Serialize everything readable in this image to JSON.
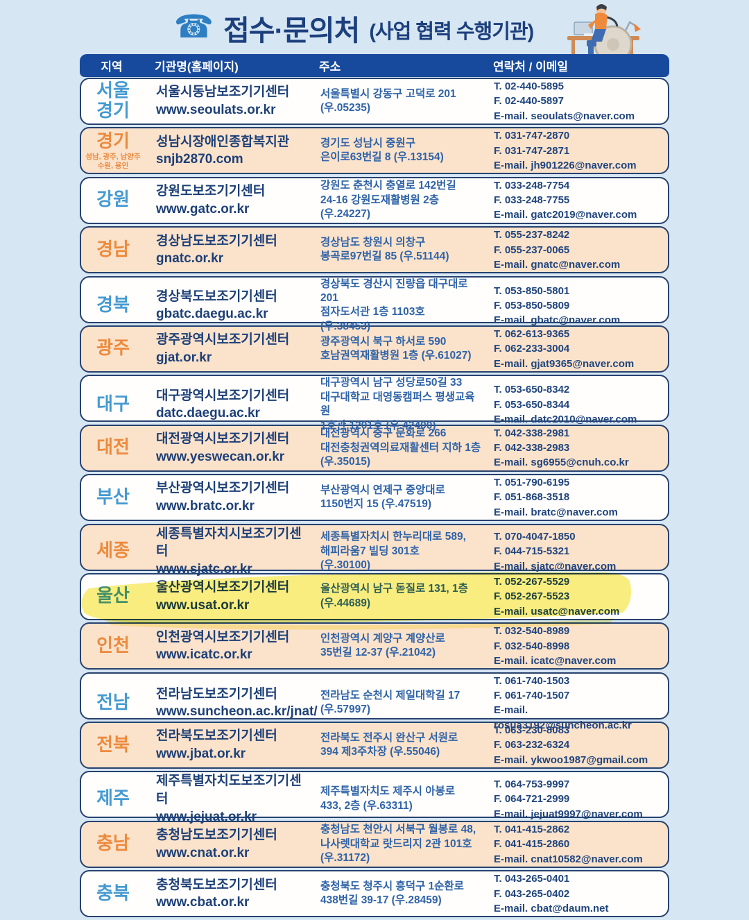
{
  "header": {
    "phone_icon": "☎",
    "title": "접수·문의처",
    "subtitle": "(사업 협력 수행기관)",
    "illustration": "person-in-wheelchair-working-at-desk"
  },
  "colors": {
    "background": "#d6e6f3",
    "header_navy": "#174a9c",
    "row_peach": "#fbe2cb",
    "region_blue": "#459ad2",
    "region_orange": "#ec8a3d",
    "text_navy": "#1d4078",
    "highlight_yellow": "#f3e32a"
  },
  "table": {
    "columns": [
      "지역",
      "기관명(홈페이지)",
      "주소",
      "연락처 / 이메일"
    ],
    "rows": [
      {
        "region_lines": [
          "서울",
          "경기"
        ],
        "region_note_lines": [],
        "org_name": "서울시동남보조기기센터",
        "org_url": "www.seoulats.or.kr",
        "address_lines": [
          "서울특별시 강동구 고덕로 201",
          "(우.05235)"
        ],
        "contact_lines": [
          "T. 02-440-5895",
          "F. 02-440-5897",
          "E-mail. seoulats@naver.com"
        ]
      },
      {
        "region_lines": [
          "경기"
        ],
        "region_note_lines": [
          "성남, 광주, 남양주",
          "수원, 용인"
        ],
        "org_name": "성남시장애인종합복지관",
        "org_url": "snjb2870.com",
        "address_lines": [
          "경기도 성남시 중원구",
          "은이로63번길 8 (우.13154)"
        ],
        "contact_lines": [
          "T. 031-747-2870",
          "F. 031-747-2871",
          "E-mail. jh901226@naver.com"
        ]
      },
      {
        "region_lines": [
          "강원"
        ],
        "region_note_lines": [],
        "org_name": "강원도보조기기센터",
        "org_url": "www.gatc.or.kr",
        "address_lines": [
          "강원도 춘천시 충열로 142번길",
          "24-16 강원도재활병원 2층",
          "(우.24227)"
        ],
        "contact_lines": [
          "T. 033-248-7754",
          "F. 033-248-7755",
          "E-mail. gatc2019@naver.com"
        ]
      },
      {
        "region_lines": [
          "경남"
        ],
        "region_note_lines": [],
        "org_name": "경상남도보조기기센터",
        "org_url": "gnatc.or.kr",
        "address_lines": [
          "경상남도 창원시 의창구",
          "봉곡로97번길 85 (우.51144)"
        ],
        "contact_lines": [
          "T. 055-237-8242",
          "F. 055-237-0065",
          "E-mail. gnatc@naver.com"
        ]
      },
      {
        "region_lines": [
          "경북"
        ],
        "region_note_lines": [],
        "org_name": "경상북도보조기기센터",
        "org_url": "gbatc.daegu.ac.kr",
        "address_lines": [
          "경상북도 경산시 진량읍 대구대로 201",
          "점자도서관 1층 1103호",
          "(우.38453)"
        ],
        "contact_lines": [
          "T. 053-850-5801",
          "F. 053-850-5809",
          "E-mail. gbatc@naver.com"
        ]
      },
      {
        "region_lines": [
          "광주"
        ],
        "region_note_lines": [],
        "org_name": "광주광역시보조기기센터",
        "org_url": "gjat.or.kr",
        "address_lines": [
          "광주광역시 북구 하서로 590",
          "호남권역재활병원 1층 (우.61027)"
        ],
        "contact_lines": [
          "T. 062-613-9365",
          "F. 062-233-3004",
          "E-mail. gjat9365@naver.com"
        ]
      },
      {
        "region_lines": [
          "대구"
        ],
        "region_note_lines": [],
        "org_name": "대구광역시보조기기센터",
        "org_url": "datc.daegu.ac.kr",
        "address_lines": [
          "대구광역시 남구 성당로50길 33",
          "대구대학교 대영동캠퍼스 평생교육원",
          "1호관 1201호 (우.42400)"
        ],
        "contact_lines": [
          "T. 053-650-8342",
          "F. 053-650-8344",
          "E-mail. datc2010@naver.com"
        ]
      },
      {
        "region_lines": [
          "대전"
        ],
        "region_note_lines": [],
        "org_name": "대전광역시보조기기센터",
        "org_url": "www.yeswecan.or.kr",
        "address_lines": [
          "대전광역시 중구 문화로 266",
          "대전충청권역의료재활센터 지하 1층",
          "(우.35015)"
        ],
        "contact_lines": [
          "T. 042-338-2981",
          "F. 042-338-2983",
          "E-mail. sg6955@cnuh.co.kr"
        ]
      },
      {
        "region_lines": [
          "부산"
        ],
        "region_note_lines": [],
        "org_name": "부산광역시보조기기센터",
        "org_url": "www.bratc.or.kr",
        "address_lines": [
          "부산광역시 연제구 중앙대로",
          "1150번지 15 (우.47519)"
        ],
        "contact_lines": [
          "T. 051-790-6195",
          "F. 051-868-3518",
          "E-mail. bratc@naver.com"
        ]
      },
      {
        "region_lines": [
          "세종"
        ],
        "region_note_lines": [],
        "org_name": "세종특별자치시보조기기센터",
        "org_url": "www.sjatc.or.kr",
        "address_lines": [
          "세종특별자치시 한누리대로 589,",
          "해피라움7 빌딩  301호",
          "(우.30100)"
        ],
        "contact_lines": [
          "T. 070-4047-1850",
          "F. 044-715-5321",
          "E-mail. sjatc@naver.com"
        ]
      },
      {
        "region_lines": [
          "울산"
        ],
        "region_note_lines": [],
        "org_name": "울산광역시보조기기센터",
        "org_url": "www.usat.or.kr",
        "address_lines": [
          "울산광역시 남구 돋질로 131, 1층",
          "(우.44689)"
        ],
        "contact_lines": [
          "T. 052-267-5529",
          "F. 052-267-5523",
          "E-mail. usatc@naver.com"
        ],
        "highlighted": true
      },
      {
        "region_lines": [
          "인천"
        ],
        "region_note_lines": [],
        "org_name": "인천광역시보조기기센터",
        "org_url": "www.icatc.or.kr",
        "address_lines": [
          "인천광역시 계양구 계양산로",
          "35번길 12-37 (우.21042)"
        ],
        "contact_lines": [
          "T. 032-540-8989",
          "F. 032-540-8998",
          "E-mail. icatc@naver.com"
        ]
      },
      {
        "region_lines": [
          "전남"
        ],
        "region_note_lines": [],
        "org_name": "전라남도보조기기센터",
        "org_url": "www.suncheon.ac.kr/jnat/",
        "address_lines": [
          "전라남도 순천시 제일대학길 17",
          "(우.57997)"
        ],
        "contact_lines": [
          "T. 061-740-1503",
          "F. 061-740-1507",
          "E-mail. rosua3192@suncheon.ac.kr"
        ]
      },
      {
        "region_lines": [
          "전북"
        ],
        "region_note_lines": [],
        "org_name": "전라북도보조기기센터",
        "org_url": "www.jbat.or.kr",
        "address_lines": [
          "전라북도 전주시 완산구 서원로",
          "394 제3주차장 (우.55046)"
        ],
        "contact_lines": [
          "T. 063-230-8083",
          "F. 063-232-6324",
          "E-mail. ykwoo1987@gmail.com"
        ]
      },
      {
        "region_lines": [
          "제주"
        ],
        "region_note_lines": [],
        "org_name": "제주특별자치도보조기기센터",
        "org_url": "www.jejuat.or.kr",
        "address_lines": [
          "제주특별자치도 제주시 아봉로",
          "433, 2층 (우.63311)"
        ],
        "contact_lines": [
          "T. 064-753-9997",
          "F. 064-721-2999",
          "E-mail. jejuat9997@naver.com"
        ]
      },
      {
        "region_lines": [
          "충남"
        ],
        "region_note_lines": [],
        "org_name": "충청남도보조기기센터",
        "org_url": "www.cnat.or.kr",
        "address_lines": [
          "충청남도 천안시 서북구 월봉로 48,",
          "나사렛대학교 랏드리지 2관 101호",
          "(우.31172)"
        ],
        "contact_lines": [
          "T. 041-415-2862",
          "F. 041-415-2860",
          "E-mail. cnat10582@naver.com"
        ]
      },
      {
        "region_lines": [
          "충북"
        ],
        "region_note_lines": [],
        "org_name": "충청북도보조기기센터",
        "org_url": "www.cbat.or.kr",
        "address_lines": [
          "충청북도 청주시 흥덕구 1순환로",
          "438번길 39-17 (우.28459)"
        ],
        "contact_lines": [
          "T. 043-265-0401",
          "F. 043-265-0402",
          "E-mail. cbat@daum.net"
        ]
      }
    ]
  }
}
